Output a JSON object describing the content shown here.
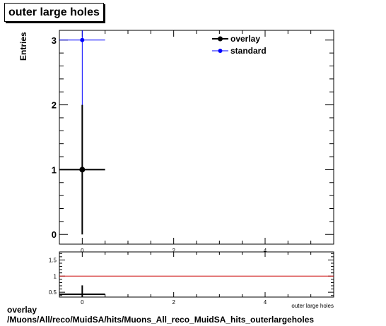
{
  "chart_data": [
    {
      "type": "scatter",
      "title": "outer large holes",
      "ylabel": "Entries",
      "xlabel": "outer large holes",
      "xlim": [
        -0.5,
        5.5
      ],
      "ylim": [
        -0.15,
        3.15
      ],
      "x_ticks": [
        "0",
        "2",
        "4"
      ],
      "y_ticks": [
        "0",
        "1",
        "2",
        "3"
      ],
      "grid": false,
      "legend_position": "top-right",
      "series": [
        {
          "name": "overlay",
          "color": "#000000",
          "points": [
            {
              "x": 0,
              "y": 1,
              "xerr": 0.5,
              "yerr": 1
            }
          ]
        },
        {
          "name": "standard",
          "color": "#0000ff",
          "points": [
            {
              "x": 0,
              "y": 3,
              "xerr": 0.5,
              "yerr": 1.732
            }
          ]
        }
      ]
    },
    {
      "type": "scatter",
      "xlabel": "outer large holes",
      "xlim": [
        -0.5,
        5.5
      ],
      "ylim": [
        0.35,
        1.75
      ],
      "x_ticks": [
        "0",
        "2",
        "4"
      ],
      "y_ticks": [
        "0.5",
        "1",
        "1.5"
      ],
      "reference_line": {
        "y": 1,
        "color": "#cc0000"
      },
      "points": [
        {
          "x": 0,
          "y": 0.333,
          "xerr": 0.5,
          "yerr": 0.38
        }
      ]
    }
  ],
  "caption": {
    "line1": "overlay",
    "line2": "/Muons/All/reco/MuidSA/hits/Muons_All_reco_MuidSA_hits_outerlargeholes"
  }
}
